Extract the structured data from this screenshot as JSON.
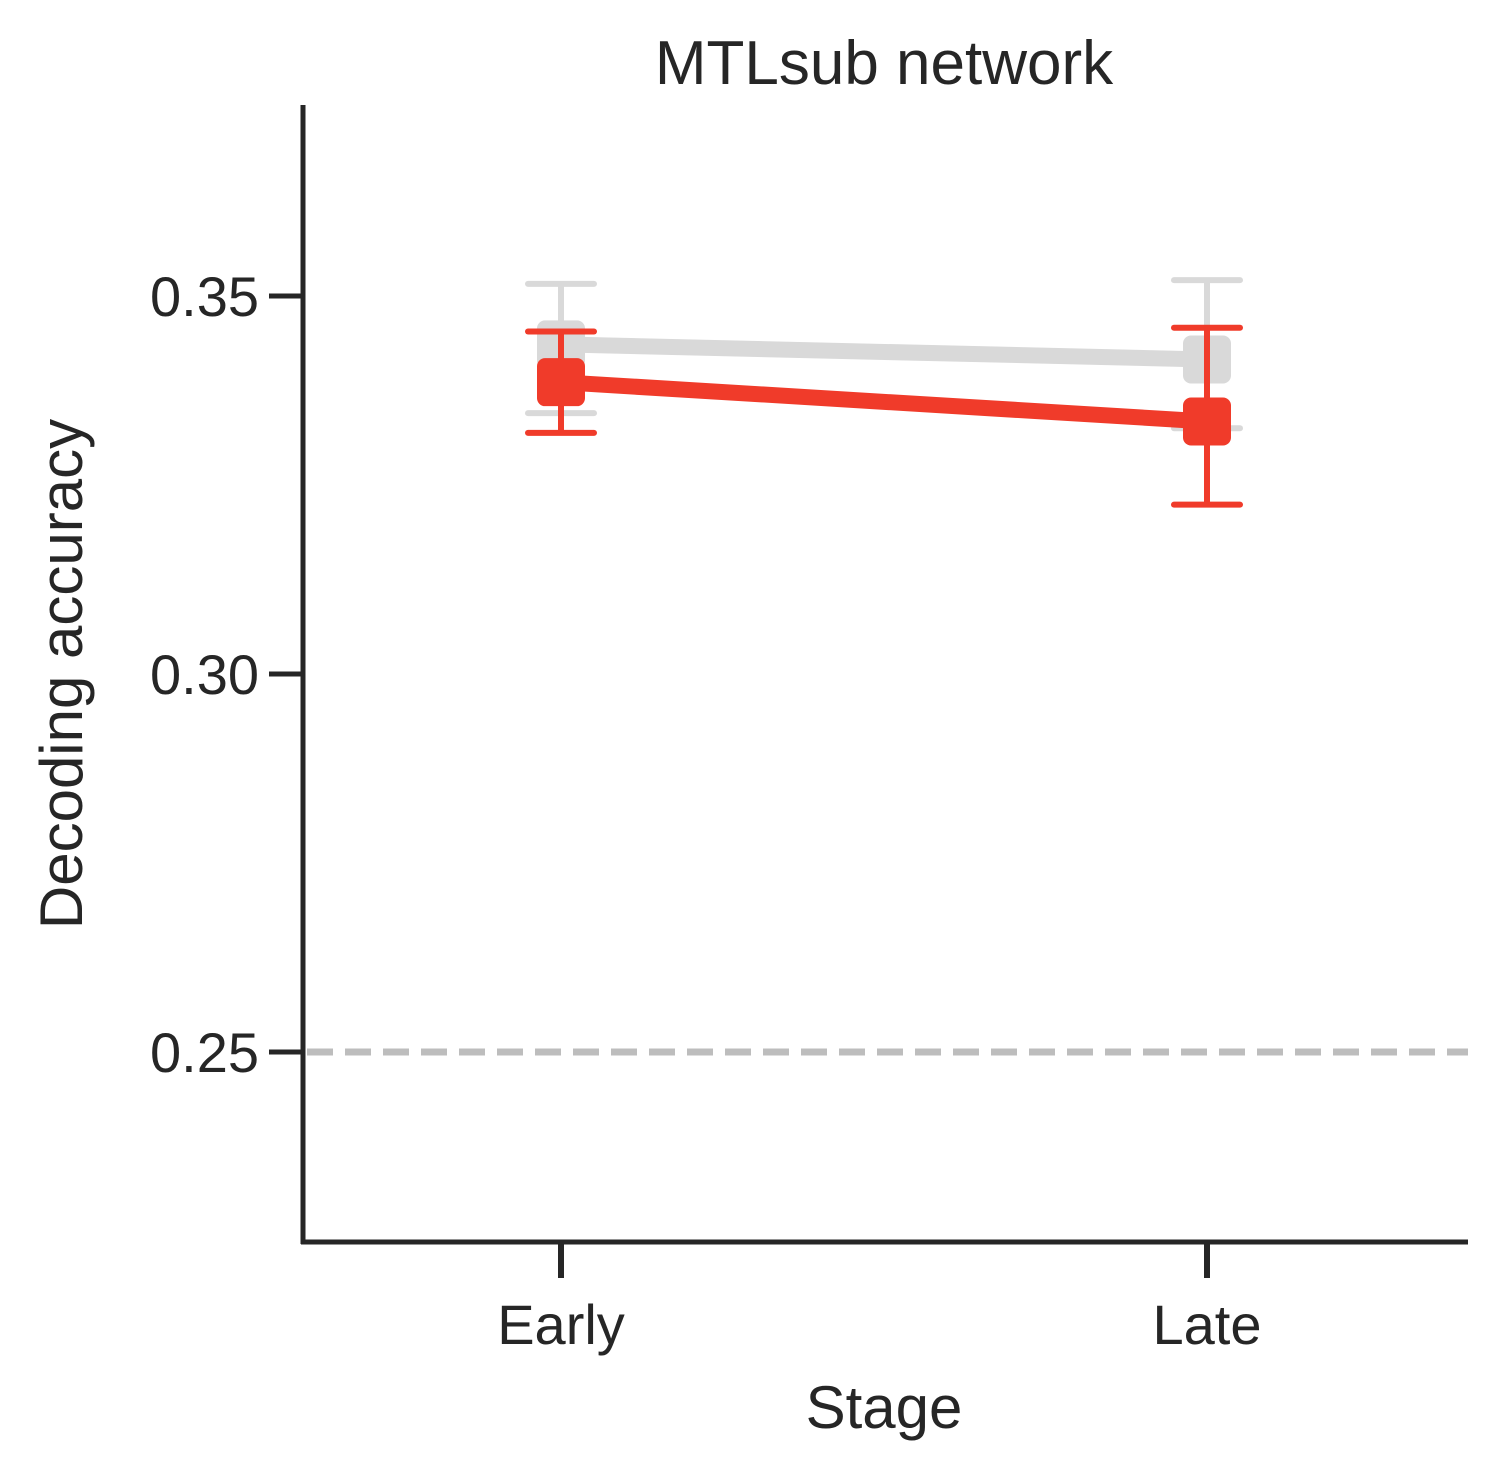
{
  "chart_data": {
    "type": "line",
    "title": "MTLsub network",
    "xlabel": "Stage",
    "ylabel": "Decoding accuracy",
    "categories": [
      "Early",
      "Late"
    ],
    "ylim": [
      0.225,
      0.375
    ],
    "yticks": [
      0.25,
      0.3,
      0.35
    ],
    "ytick_labels": [
      "0.25",
      "0.30",
      "0.35"
    ],
    "reference_line": {
      "y": 0.25,
      "style": "dashed",
      "color": "#bdbdbd"
    },
    "grid": false,
    "legend": "none",
    "series": [
      {
        "color": "#d9d9d9",
        "marker": "square",
        "values": [
          0.3436,
          0.3416
        ],
        "error_low": [
          0.3345,
          0.3325
        ],
        "error_high": [
          0.3516,
          0.3521
        ]
      },
      {
        "color": "#f03b2a",
        "marker": "square",
        "values": [
          0.3386,
          0.3334
        ],
        "error_low": [
          0.3319,
          0.3224
        ],
        "error_high": [
          0.3453,
          0.3458
        ]
      }
    ]
  }
}
